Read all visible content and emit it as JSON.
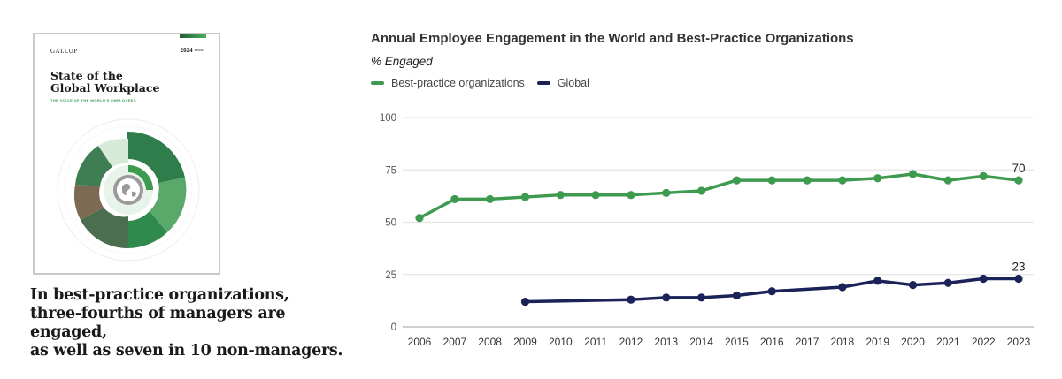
{
  "cover": {
    "brand": "GALLUP",
    "year": "2024",
    "year_suffix": "REPORT",
    "title": "State of the\nGlobal Workplace",
    "subtitle": "THE VOICE OF THE WORLD'S EMPLOYEES",
    "image_description": "circular mosaic of workplace photos around a globe icon"
  },
  "caption": "In best-practice organizations,\nthree-fourths of managers are engaged,\nas well as seven in 10 non-managers.",
  "colors": {
    "best_practice": "#3d9a4f",
    "global": "#1b2257",
    "grid": "#e6e6e6",
    "axis": "#cfcfcf"
  },
  "chart_data": {
    "type": "line",
    "title": "Annual Employee Engagement in the World and Best-Practice Organizations",
    "subtitle": "% Engaged",
    "xlabel": "",
    "ylabel": "% Engaged",
    "ylim": [
      0,
      100
    ],
    "yticks": [
      0,
      25,
      50,
      75,
      100
    ],
    "grid": true,
    "legend_position": "top-left",
    "x": [
      "2006",
      "2007",
      "2008",
      "2009",
      "2010",
      "2011",
      "2012",
      "2013",
      "2014",
      "2015",
      "2016",
      "2017",
      "2018",
      "2019",
      "2020",
      "2021",
      "2022",
      "2023"
    ],
    "series": [
      {
        "name": "Best-practice organizations",
        "color": "#3d9a4f",
        "values": [
          52,
          61,
          61,
          62,
          63,
          63,
          63,
          64,
          65,
          70,
          70,
          70,
          70,
          71,
          73,
          70,
          72,
          70
        ],
        "end_label": "70"
      },
      {
        "name": "Global",
        "color": "#1b2257",
        "values": [
          null,
          null,
          null,
          12,
          null,
          null,
          13,
          14,
          14,
          15,
          17,
          null,
          19,
          22,
          20,
          21,
          23,
          23
        ],
        "end_label": "23"
      }
    ]
  }
}
